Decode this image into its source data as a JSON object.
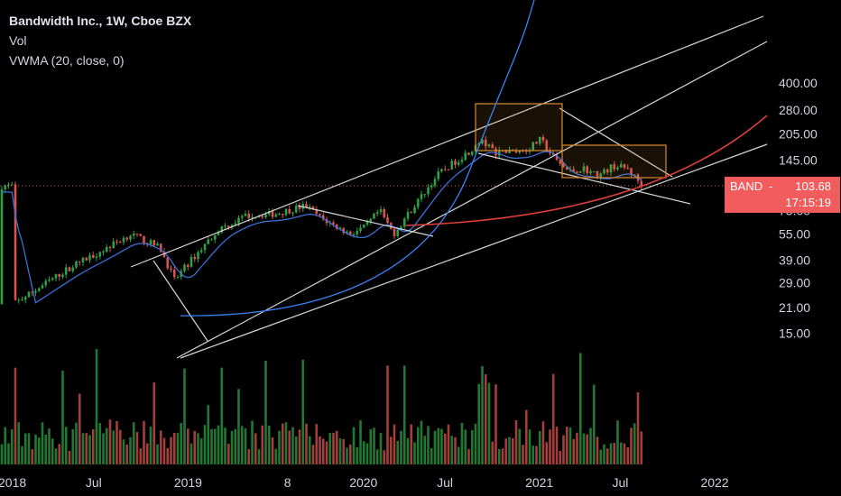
{
  "legend": {
    "title": "Bandwidth Inc., 1W, Cboe BZX",
    "vol": "Vol",
    "vwma": "VWMA (20, close, 0)"
  },
  "price_badge": {
    "symbol": "BAND",
    "price": "103.68",
    "countdown": "17:15:19"
  },
  "colors": {
    "background": "#000000",
    "up": "#2ea043",
    "down": "#d9534f",
    "vwma_line": "#3d6fd6",
    "blue_curve": "#3b82f6",
    "red_curve": "#e0403c",
    "channel": "#d8d8d8",
    "box": "#d98a2f",
    "price_line": "#f25c5c",
    "axis_text": "#d1d4dc"
  },
  "chart_data": {
    "type": "candlestick",
    "title": "Bandwidth Inc., 1W, Cboe BZX",
    "y_scale": "log",
    "y_ticks": [
      "400.00",
      "280.00",
      "205.00",
      "145.00",
      "103.68",
      "75.00",
      "55.00",
      "39.00",
      "29.00",
      "21.00",
      "15.00"
    ],
    "x_ticks": [
      "2018",
      "Jul",
      "2019",
      "8",
      "2020",
      "Jul",
      "2021",
      "Jul",
      "2022"
    ],
    "last_price": 103.68,
    "indicators": [
      "Vol",
      "VWMA (20, close, 0)"
    ],
    "price_path": [
      {
        "t": "2018-01",
        "p": 22
      },
      {
        "t": "2018-03",
        "p": 28
      },
      {
        "t": "2018-05",
        "p": 36
      },
      {
        "t": "2018-07",
        "p": 44
      },
      {
        "t": "2018-09",
        "p": 55
      },
      {
        "t": "2018-11",
        "p": 46
      },
      {
        "t": "2018-12",
        "p": 30
      },
      {
        "t": "2019-01",
        "p": 38
      },
      {
        "t": "2019-03",
        "p": 58
      },
      {
        "t": "2019-05",
        "p": 70
      },
      {
        "t": "2019-07",
        "p": 72
      },
      {
        "t": "2019-09",
        "p": 80
      },
      {
        "t": "2019-10",
        "p": 68
      },
      {
        "t": "2019-12",
        "p": 55
      },
      {
        "t": "2020-01",
        "p": 60
      },
      {
        "t": "2020-02",
        "p": 75
      },
      {
        "t": "2020-03",
        "p": 55
      },
      {
        "t": "2020-04",
        "p": 72
      },
      {
        "t": "2020-06",
        "p": 120
      },
      {
        "t": "2020-08",
        "p": 160
      },
      {
        "t": "2020-09",
        "p": 185
      },
      {
        "t": "2020-10",
        "p": 160
      },
      {
        "t": "2020-12",
        "p": 165
      },
      {
        "t": "2021-01",
        "p": 190
      },
      {
        "t": "2021-02",
        "p": 145
      },
      {
        "t": "2021-03",
        "p": 125
      },
      {
        "t": "2021-04",
        "p": 130
      },
      {
        "t": "2021-05",
        "p": 118
      },
      {
        "t": "2021-06",
        "p": 135
      },
      {
        "t": "2021-07",
        "p": 130
      },
      {
        "t": "2021-08",
        "p": 103.68
      }
    ],
    "drawings": {
      "rising_channel": "three parallel rising trend lines",
      "highlight_boxes": 2,
      "blue_curve": "parabolic",
      "red_curve": "parabolic"
    }
  }
}
